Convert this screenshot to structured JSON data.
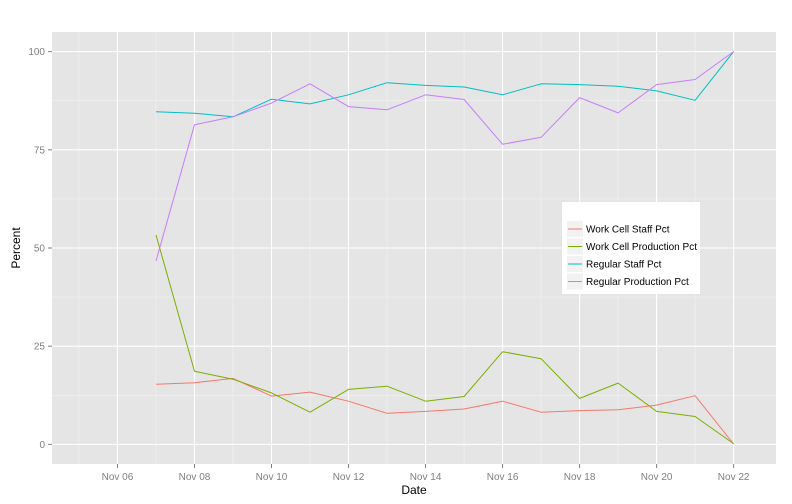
{
  "chart_data": {
    "type": "line",
    "xlabel": "Date",
    "ylabel": "Percent",
    "x_tick_labels": [
      "Nov 06",
      "Nov 08",
      "Nov 10",
      "Nov 12",
      "Nov 14",
      "Nov 16",
      "Nov 18",
      "Nov 20",
      "Nov 22"
    ],
    "x_tick_days": [
      6,
      8,
      10,
      12,
      14,
      16,
      18,
      20,
      22
    ],
    "xlim": [
      4.3,
      23.1
    ],
    "y_ticks": [
      0,
      25,
      50,
      75,
      100
    ],
    "ylim": [
      -5,
      105
    ],
    "grid": true,
    "legend_position": "right",
    "x": [
      7,
      8,
      9,
      10,
      11,
      12,
      13,
      14,
      15,
      16,
      17,
      18,
      19,
      20,
      21,
      22
    ],
    "series": [
      {
        "name": "Work Cell Staff Pct",
        "color": "#F8766D",
        "values": [
          15.3,
          15.7,
          16.8,
          12.3,
          13.3,
          11.0,
          7.9,
          8.4,
          9.0,
          11.0,
          8.2,
          8.6,
          8.8,
          10.0,
          12.4,
          0.1
        ]
      },
      {
        "name": "Work Cell Production Pct",
        "color": "#7CAE00",
        "values": [
          53.3,
          18.6,
          16.6,
          13.1,
          8.2,
          14.0,
          14.8,
          11.0,
          12.2,
          23.6,
          21.8,
          11.7,
          15.6,
          8.4,
          7.1,
          0.2
        ]
      },
      {
        "name": "Regular Staff Pct",
        "color": "#00BFC4",
        "values": [
          84.7,
          84.3,
          83.4,
          87.9,
          86.7,
          89.0,
          92.1,
          91.4,
          91.0,
          89.0,
          91.8,
          91.6,
          91.2,
          90.0,
          87.6,
          100.0
        ]
      },
      {
        "name": "Regular Production Pct",
        "color": "#C77CFF",
        "values": [
          46.7,
          81.4,
          83.4,
          86.9,
          91.8,
          86.0,
          85.2,
          89.0,
          87.8,
          76.4,
          78.2,
          88.3,
          84.4,
          91.6,
          92.9,
          100.0
        ]
      }
    ]
  }
}
